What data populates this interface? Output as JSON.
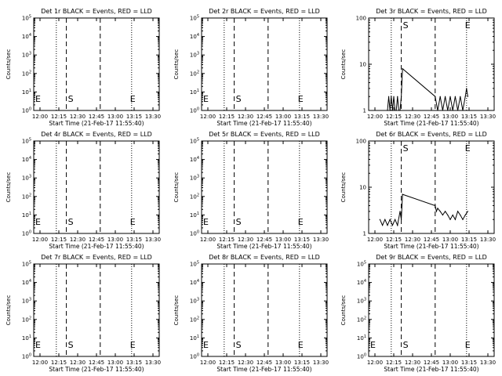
{
  "figure": {
    "background": "#ffffff",
    "ink": "#000000",
    "event_color": "#000000"
  },
  "chart_data": [
    {
      "type": "line",
      "title": "Det 1r BLACK = Events, RED = LLD",
      "xlabel": "Start Time (21-Feb-17 11:55:40)",
      "ylabel": "Counts/sec",
      "x_ticks": [
        "12:00",
        "12:15",
        "12:30",
        "12:45",
        "13:00",
        "13:15",
        "13:30"
      ],
      "y_scale": "log",
      "y_ticks": [
        "10^0",
        "10^1",
        "10^2",
        "10^3",
        "10^4",
        "10^5"
      ],
      "ylim": [
        1,
        100000
      ],
      "markers": {
        "dotted": [
          "12:13",
          "13:13"
        ],
        "dashed": [
          "12:21",
          "12:48"
        ],
        "S_at": "12:21",
        "E_at": "13:13"
      },
      "series": []
    },
    {
      "type": "line",
      "title": "Det 2r BLACK = Events, RED = LLD",
      "xlabel": "Start Time (21-Feb-17 11:55:40)",
      "ylabel": "Counts/sec",
      "x_ticks": [
        "12:00",
        "12:15",
        "12:30",
        "12:45",
        "13:00",
        "13:15",
        "13:30"
      ],
      "y_scale": "log",
      "y_ticks": [
        "10^0",
        "10^1",
        "10^2",
        "10^3",
        "10^4",
        "10^5"
      ],
      "ylim": [
        1,
        100000
      ],
      "markers": {
        "dotted": [
          "12:13",
          "13:13"
        ],
        "dashed": [
          "12:21",
          "12:48"
        ],
        "S_at": "12:21",
        "E_at": "13:13"
      },
      "series": []
    },
    {
      "type": "line",
      "title": "Det 3r BLACK = Events, RED = LLD",
      "xlabel": "Start Time (21-Feb-17 11:55:40)",
      "ylabel": "Counts/sec",
      "x_ticks": [
        "12:00",
        "12:15",
        "12:30",
        "12:45",
        "13:00",
        "13:15",
        "13:30"
      ],
      "y_scale": "log",
      "y_ticks": [
        "1",
        "10",
        "100"
      ],
      "ylim": [
        1,
        100
      ],
      "markers": {
        "dotted": [
          "12:13",
          "13:13"
        ],
        "dashed": [
          "12:21",
          "12:48"
        ],
        "S_at": "12:21",
        "E_at": "13:13"
      },
      "series": [
        {
          "kind": "events",
          "x": [
            "12:10",
            "12:11",
            "12:12",
            "12:13",
            "12:14",
            "12:15",
            "12:16",
            "12:17",
            "12:18",
            "12:19",
            "12:20",
            "12:21",
            "12:22",
            "12:48",
            "12:50",
            "12:52",
            "12:54",
            "12:56",
            "12:58",
            "13:00",
            "13:02",
            "13:04",
            "13:06",
            "13:08",
            "13:10",
            "13:12",
            "13:13",
            "13:14"
          ],
          "y": [
            1,
            2,
            1,
            2,
            1,
            2,
            1,
            1,
            2,
            1,
            1,
            2,
            8,
            2,
            1,
            2,
            1,
            2,
            1,
            2,
            1,
            2,
            1,
            2,
            1,
            2,
            3,
            2
          ]
        }
      ]
    },
    {
      "type": "line",
      "title": "Det 4r BLACK = Events, RED = LLD",
      "xlabel": "Start Time (21-Feb-17 11:55:40)",
      "ylabel": "Counts/sec",
      "x_ticks": [
        "12:00",
        "12:15",
        "12:30",
        "12:45",
        "13:00",
        "13:15",
        "13:30"
      ],
      "y_scale": "log",
      "y_ticks": [
        "10^0",
        "10^1",
        "10^2",
        "10^3",
        "10^4",
        "10^5"
      ],
      "ylim": [
        1,
        100000
      ],
      "markers": {
        "dotted": [
          "12:13",
          "13:13"
        ],
        "dashed": [
          "12:21",
          "12:48"
        ],
        "S_at": "12:21",
        "E_at": "13:13"
      },
      "series": []
    },
    {
      "type": "line",
      "title": "Det 5r BLACK = Events, RED = LLD",
      "xlabel": "Start Time (21-Feb-17 11:55:40)",
      "ylabel": "Counts/sec",
      "x_ticks": [
        "12:00",
        "12:15",
        "12:30",
        "12:45",
        "13:00",
        "13:15",
        "13:30"
      ],
      "y_scale": "log",
      "y_ticks": [
        "10^0",
        "10^1",
        "10^2",
        "10^3",
        "10^4",
        "10^5"
      ],
      "ylim": [
        1,
        100000
      ],
      "markers": {
        "dotted": [
          "12:13",
          "13:13"
        ],
        "dashed": [
          "12:21",
          "12:48"
        ],
        "S_at": "12:21",
        "E_at": "13:13"
      },
      "series": []
    },
    {
      "type": "line",
      "title": "Det 6r BLACK = Events, RED = LLD",
      "xlabel": "Start Time (21-Feb-17 11:55:40)",
      "ylabel": "Counts/sec",
      "x_ticks": [
        "12:00",
        "12:15",
        "12:30",
        "12:45",
        "13:00",
        "13:15",
        "13:30"
      ],
      "y_scale": "log",
      "y_ticks": [
        "1",
        "10",
        "100"
      ],
      "ylim": [
        1,
        100
      ],
      "markers": {
        "dotted": [
          "12:13",
          "13:13"
        ],
        "dashed": [
          "12:21",
          "12:48"
        ],
        "S_at": "12:21",
        "E_at": "13:13"
      },
      "series": [
        {
          "kind": "events",
          "x": [
            "12:04",
            "12:06",
            "12:08",
            "12:10",
            "12:12",
            "12:14",
            "12:16",
            "12:18",
            "12:20",
            "12:21",
            "12:22",
            "12:48",
            "12:49",
            "12:50",
            "12:52",
            "12:54",
            "12:56",
            "12:58",
            "13:00",
            "13:02",
            "13:04",
            "13:06",
            "13:08",
            "13:10",
            "13:12",
            "13:14"
          ],
          "y": [
            2,
            1.5,
            2,
            1.5,
            2,
            1.5,
            2,
            1.5,
            3,
            2,
            7,
            4,
            3,
            3.5,
            3,
            2.5,
            3,
            2.5,
            2,
            2.5,
            2,
            3,
            2.5,
            2,
            2.5,
            3
          ]
        }
      ]
    },
    {
      "type": "line",
      "title": "Det 7r BLACK = Events, RED = LLD",
      "xlabel": "Start Time (21-Feb-17 11:55:40)",
      "ylabel": "Counts/sec",
      "x_ticks": [
        "12:00",
        "12:15",
        "12:30",
        "12:45",
        "13:00",
        "13:15",
        "13:30"
      ],
      "y_scale": "log",
      "y_ticks": [
        "10^0",
        "10^1",
        "10^2",
        "10^3",
        "10^4",
        "10^5"
      ],
      "ylim": [
        1,
        100000
      ],
      "markers": {
        "dotted": [
          "12:13",
          "13:13"
        ],
        "dashed": [
          "12:21",
          "12:48"
        ],
        "S_at": "12:21",
        "E_at": "13:13"
      },
      "series": []
    },
    {
      "type": "line",
      "title": "Det 8r BLACK = Events, RED = LLD",
      "xlabel": "Start Time (21-Feb-17 11:55:40)",
      "ylabel": "Counts/sec",
      "x_ticks": [
        "12:00",
        "12:15",
        "12:30",
        "12:45",
        "13:00",
        "13:15",
        "13:30"
      ],
      "y_scale": "log",
      "y_ticks": [
        "10^0",
        "10^1",
        "10^2",
        "10^3",
        "10^4",
        "10^5"
      ],
      "ylim": [
        1,
        100000
      ],
      "markers": {
        "dotted": [
          "12:13",
          "13:13"
        ],
        "dashed": [
          "12:21",
          "12:48"
        ],
        "S_at": "12:21",
        "E_at": "13:13"
      },
      "series": []
    },
    {
      "type": "line",
      "title": "Det 9r BLACK = Events, RED = LLD",
      "xlabel": "Start Time (21-Feb-17 11:55:40)",
      "ylabel": "Counts/sec",
      "x_ticks": [
        "12:00",
        "12:15",
        "12:30",
        "12:45",
        "13:00",
        "13:15",
        "13:30"
      ],
      "y_scale": "log",
      "y_ticks": [
        "10^0",
        "10^1",
        "10^2",
        "10^3",
        "10^4",
        "10^5"
      ],
      "ylim": [
        1,
        100000
      ],
      "markers": {
        "dotted": [
          "12:13",
          "13:13"
        ],
        "dashed": [
          "12:21",
          "12:48"
        ],
        "S_at": "12:21",
        "E_at": "13:13"
      },
      "series": []
    }
  ]
}
